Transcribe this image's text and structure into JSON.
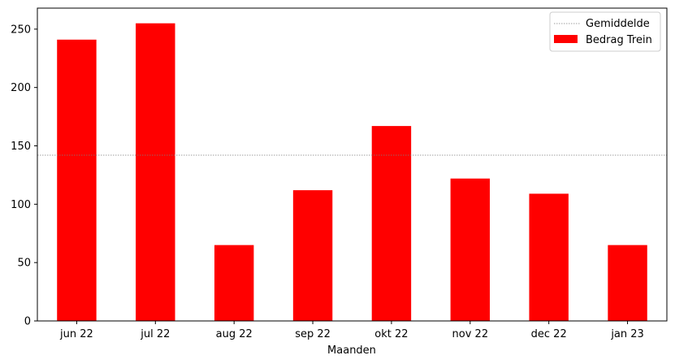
{
  "chart_data": {
    "type": "bar",
    "title": "",
    "xlabel": "Maanden",
    "ylabel": "",
    "categories": [
      "jun 22",
      "jul 22",
      "aug 22",
      "sep 22",
      "okt 22",
      "nov 22",
      "dec 22",
      "jan 23"
    ],
    "series": [
      {
        "name": "Bedrag Trein",
        "values": [
          241,
          255,
          65,
          112,
          167,
          122,
          109,
          65
        ],
        "color": "#ff0000"
      }
    ],
    "average_line": {
      "name": "Gemiddelde",
      "value": 142,
      "color": "#808080",
      "style": "dotted"
    },
    "ylim": [
      0,
      268
    ],
    "yticks": [
      0,
      50,
      100,
      150,
      200,
      250
    ],
    "grid": false,
    "legend_position": "top-right"
  }
}
